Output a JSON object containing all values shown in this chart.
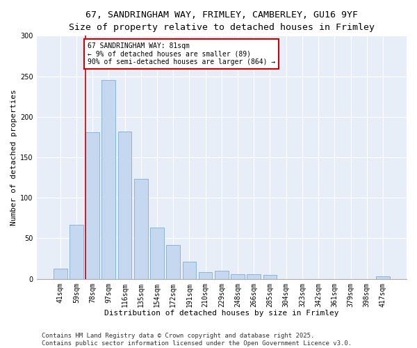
{
  "title_line1": "67, SANDRINGHAM WAY, FRIMLEY, CAMBERLEY, GU16 9YF",
  "title_line2": "Size of property relative to detached houses in Frimley",
  "xlabel": "Distribution of detached houses by size in Frimley",
  "ylabel": "Number of detached properties",
  "bar_color": "#c5d8f0",
  "bar_edge_color": "#7bafd4",
  "bg_color": "#e8eef8",
  "categories": [
    "41sqm",
    "59sqm",
    "78sqm",
    "97sqm",
    "116sqm",
    "135sqm",
    "154sqm",
    "172sqm",
    "191sqm",
    "210sqm",
    "229sqm",
    "248sqm",
    "266sqm",
    "285sqm",
    "304sqm",
    "323sqm",
    "342sqm",
    "361sqm",
    "379sqm",
    "398sqm",
    "417sqm"
  ],
  "values": [
    13,
    67,
    181,
    245,
    182,
    123,
    63,
    42,
    21,
    8,
    10,
    6,
    6,
    5,
    0,
    0,
    0,
    0,
    0,
    0,
    3
  ],
  "property_bin_index": 2,
  "annotation_text": "67 SANDRINGHAM WAY: 81sqm\n← 9% of detached houses are smaller (89)\n90% of semi-detached houses are larger (864) →",
  "annotation_box_color": "#ffffff",
  "annotation_box_edge": "#cc0000",
  "vline_color": "#cc0000",
  "footer_line1": "Contains HM Land Registry data © Crown copyright and database right 2025.",
  "footer_line2": "Contains public sector information licensed under the Open Government Licence v3.0.",
  "ylim": [
    0,
    300
  ],
  "yticks": [
    0,
    50,
    100,
    150,
    200,
    250,
    300
  ],
  "title_fontsize": 9.5,
  "subtitle_fontsize": 8.5,
  "axis_label_fontsize": 8,
  "tick_fontsize": 7,
  "annotation_fontsize": 7,
  "footer_fontsize": 6.5
}
